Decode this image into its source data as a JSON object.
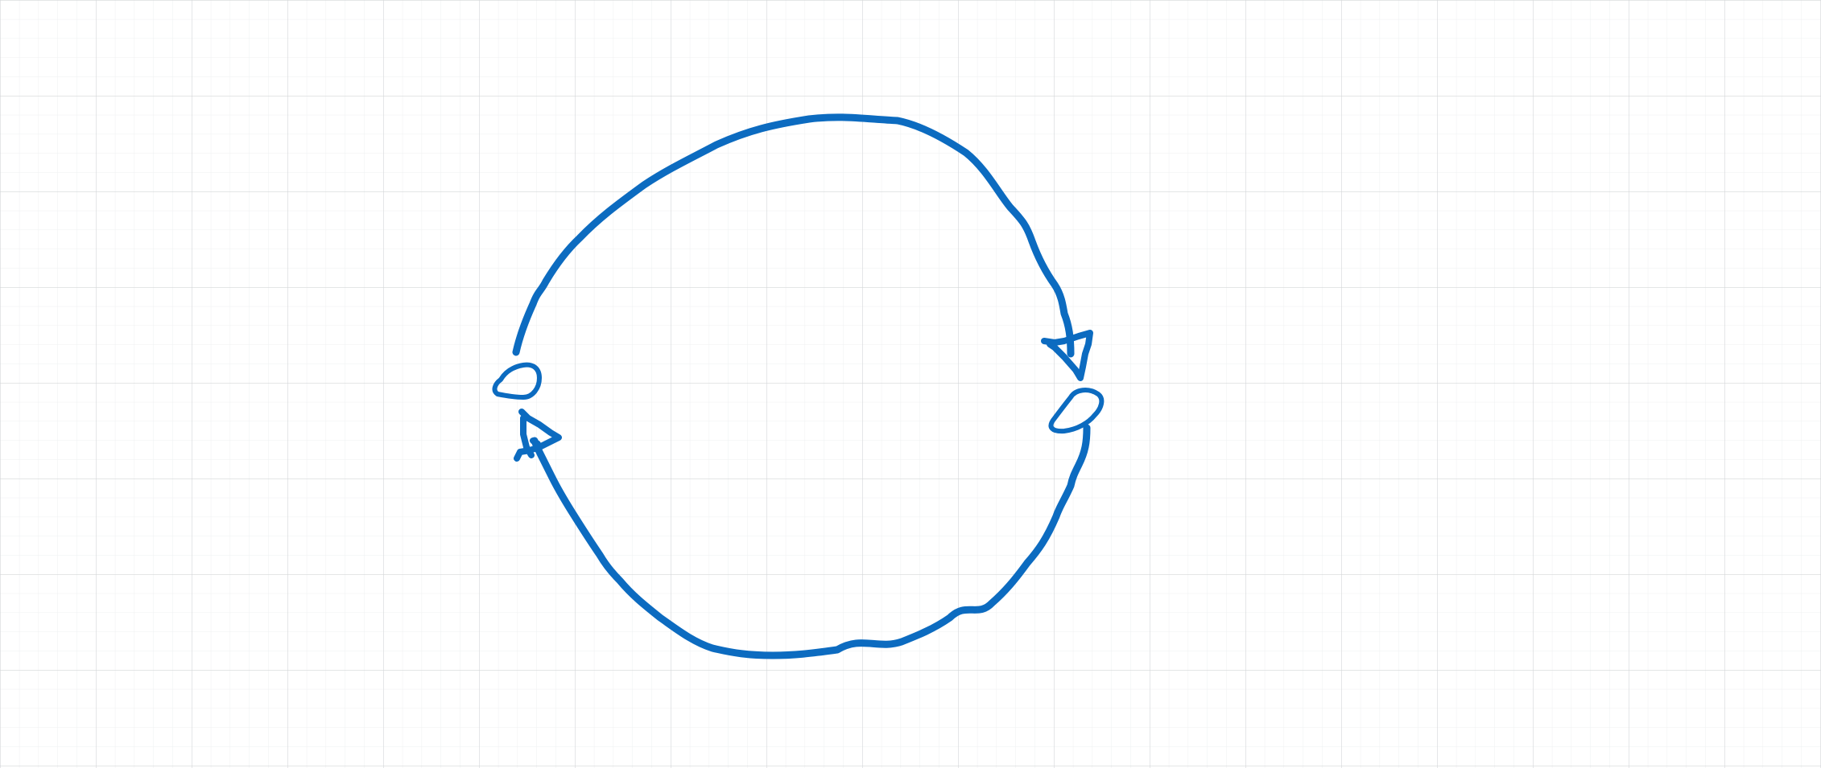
{
  "canvas": {
    "background": "#ffffff",
    "grid_minor_color": "#eef0f1",
    "grid_major_color": "#d4d6d8",
    "ink_color": "#0c6bc0"
  },
  "drawing": {
    "shape": "hand-drawn cycle",
    "arcs": 2,
    "arrowheads": 2,
    "icon": "cycle-arrows-icon"
  }
}
